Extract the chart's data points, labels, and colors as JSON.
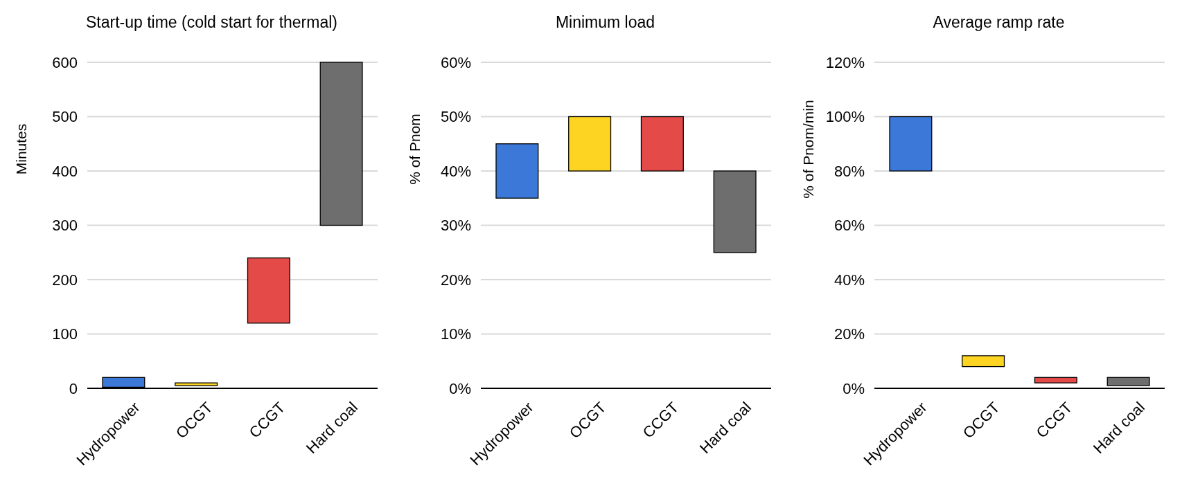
{
  "chart_data": [
    {
      "type": "bar",
      "title": "Start-up time (cold start for thermal)",
      "ylabel": "Minutes",
      "categories": [
        "Hydropower",
        "OCGT",
        "CCGT",
        "Hard coal"
      ],
      "values": [
        18,
        5,
        120,
        300
      ],
      "base": [
        2,
        5,
        120,
        300
      ],
      "colors": [
        "#3c78d8",
        "#fdd422",
        "#e34a48",
        "#6e6e6e"
      ],
      "ylim": [
        0,
        600
      ],
      "yticks": [
        0,
        100,
        200,
        300,
        400,
        500,
        600
      ],
      "grid": "y"
    },
    {
      "type": "bar",
      "title": "Minimum load",
      "ylabel": "% of Pnom",
      "categories": [
        "Hydropower",
        "OCGT",
        "CCGT",
        "Hard coal"
      ],
      "values": [
        10,
        10,
        10,
        15
      ],
      "base": [
        35,
        40,
        40,
        25
      ],
      "colors": [
        "#3c78d8",
        "#fdd422",
        "#e34a48",
        "#6e6e6e"
      ],
      "ylim": [
        0,
        60
      ],
      "yticks": [
        {
          "value": 0,
          "label": "0%"
        },
        {
          "value": 10,
          "label": "10%"
        },
        {
          "value": 20,
          "label": "20%"
        },
        {
          "value": 30,
          "label": "30%"
        },
        {
          "value": 40,
          "label": "40%"
        },
        {
          "value": 50,
          "label": "50%"
        },
        {
          "value": 60,
          "label": "60%"
        }
      ],
      "grid": "y"
    },
    {
      "type": "bar",
      "title": "Average ramp rate",
      "ylabel": "% of Pnom/min",
      "categories": [
        "Hydropower",
        "OCGT",
        "CCGT",
        "Hard coal"
      ],
      "values": [
        20,
        4,
        2,
        3
      ],
      "base": [
        80,
        8,
        2,
        1
      ],
      "colors": [
        "#3c78d8",
        "#fdd422",
        "#e34a48",
        "#6e6e6e"
      ],
      "ylim": [
        0,
        120
      ],
      "yticks": [
        {
          "value": 0,
          "label": "0%"
        },
        {
          "value": 20,
          "label": "20%"
        },
        {
          "value": 40,
          "label": "40%"
        },
        {
          "value": 60,
          "label": "60%"
        },
        {
          "value": 80,
          "label": "80%"
        },
        {
          "value": 100,
          "label": "100%"
        },
        {
          "value": 120,
          "label": "120%"
        }
      ],
      "grid": "y"
    }
  ]
}
